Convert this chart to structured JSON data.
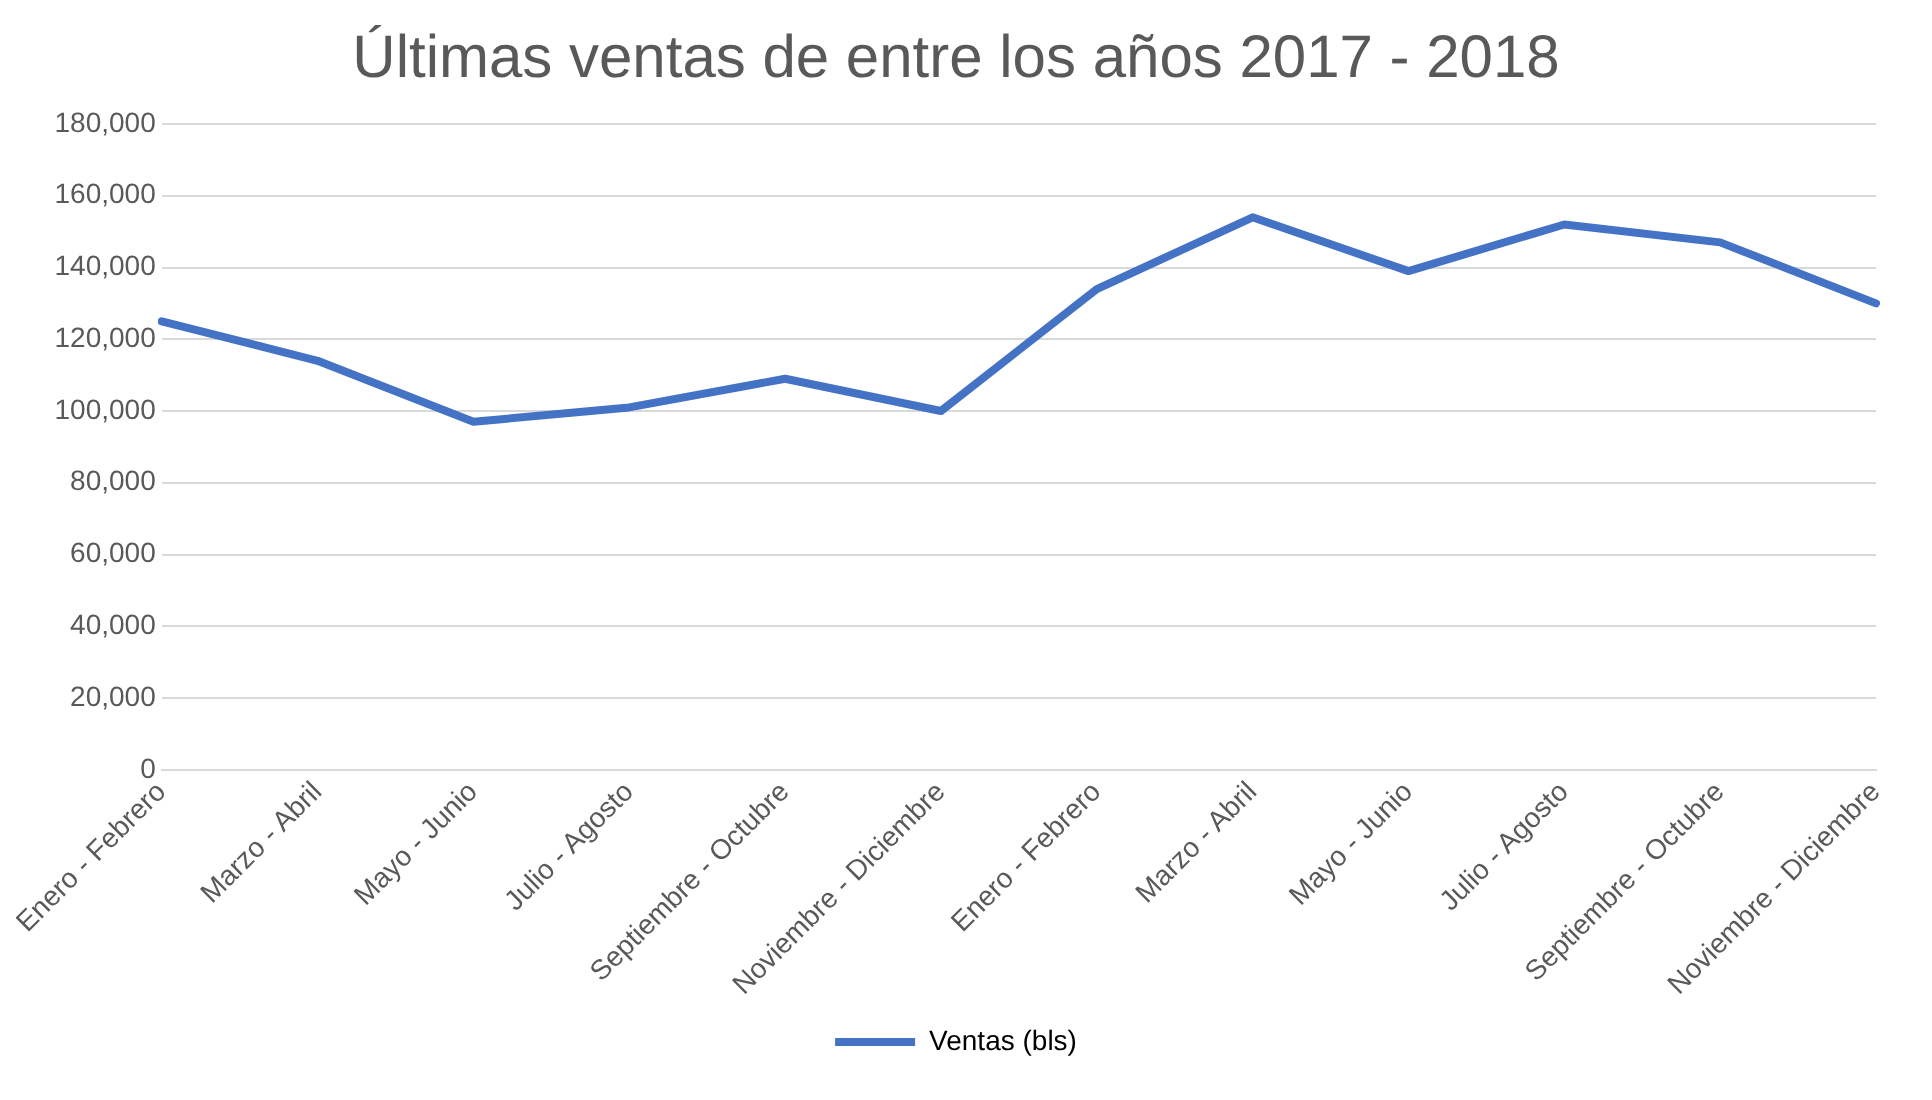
{
  "chart_data": {
    "type": "line",
    "title": "Últimas ventas de entre los años 2017 - 2018",
    "categories": [
      "Enero - Febrero",
      "Marzo - Abril",
      "Mayo - Junio",
      "Julio - Agosto",
      "Septiembre - Octubre",
      "Noviembre - Diciembre",
      "Enero - Febrero",
      "Marzo - Abril",
      "Mayo - Junio",
      "Julio - Agosto",
      "Septiembre - Octubre",
      "Noviembre - Diciembre"
    ],
    "series": [
      {
        "name": "Ventas (bls)",
        "color": "#4472c4",
        "values": [
          125000,
          114000,
          97000,
          101000,
          109000,
          100000,
          134000,
          154000,
          139000,
          152000,
          147000,
          130000
        ]
      }
    ],
    "ylim": [
      0,
      180000
    ],
    "yticks": [
      0,
      {
        "value": 20000,
        "label": "20,000"
      },
      {
        "value": 40000,
        "label": "40,000"
      },
      {
        "value": 60000,
        "label": "60,000"
      },
      {
        "value": 80000,
        "label": "80,000"
      },
      {
        "value": 100000,
        "label": "100,000"
      },
      {
        "value": 120000,
        "label": "120,000"
      },
      {
        "value": 140000,
        "label": "140,000"
      },
      {
        "value": 160000,
        "label": "160,000"
      },
      {
        "value": 180000,
        "label": "180,000"
      }
    ],
    "grid": "y",
    "legend": "bottom",
    "marker": "none",
    "line_style": "solid"
  }
}
